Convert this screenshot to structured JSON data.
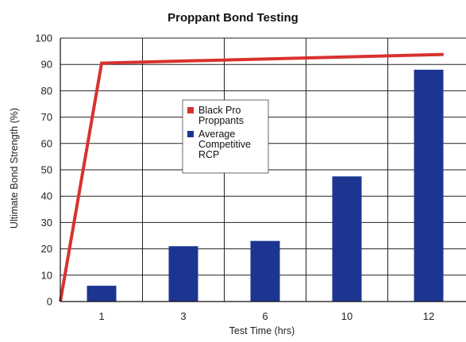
{
  "chart_data": {
    "type": "bar",
    "title": "Proppant Bond Testing",
    "xlabel": "Test Time (hrs)",
    "ylabel": "Ultimate Bond Strength (%)",
    "categories": [
      "1",
      "3",
      "6",
      "10",
      "12"
    ],
    "ylim": [
      0,
      100
    ],
    "yticks": [
      0,
      10,
      20,
      30,
      40,
      50,
      60,
      70,
      80,
      90,
      100
    ],
    "grid": true,
    "legend_position": "center",
    "series": [
      {
        "name": "Average Competitive RCP",
        "legend_lines": [
          "Average",
          "Competitive",
          "RCP"
        ],
        "type": "bar",
        "color": "#1c3591",
        "values": [
          6,
          21,
          23,
          47.5,
          88
        ]
      },
      {
        "name": "Black Pro Proppants",
        "legend_lines": [
          "Black Pro",
          "Proppants"
        ],
        "type": "line",
        "color": "#d8322f",
        "points": [
          [
            0,
            0
          ],
          [
            1,
            90.5
          ],
          [
            12.5,
            93.8
          ]
        ]
      }
    ]
  }
}
